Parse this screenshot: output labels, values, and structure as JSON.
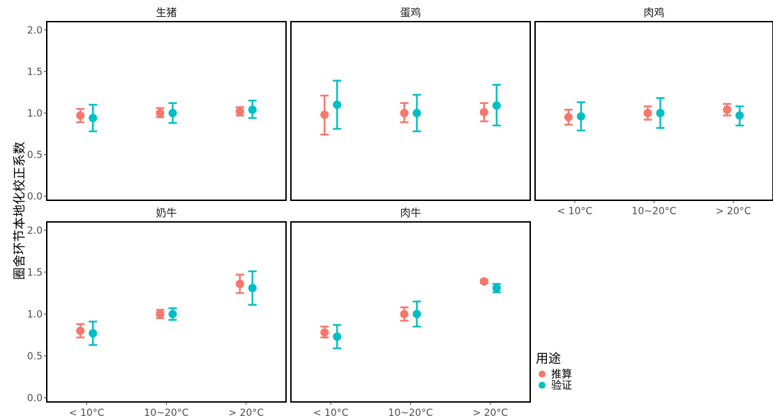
{
  "chart_data": {
    "type": "scatter",
    "subtype": "point-with-error-bars, faceted",
    "ylabel": "圈舍环节本地化校正系数",
    "ylim": [
      -0.05,
      2.1
    ],
    "yticks": [
      "0.0",
      "0.5",
      "1.0",
      "1.5",
      "2.0"
    ],
    "categories": [
      "< 10°C",
      "10~20°C",
      "> 20°C"
    ],
    "grid": false,
    "legend": {
      "title": "用途",
      "placement": "right-bottom",
      "items": [
        {
          "name": "推算",
          "color": "#F8766D"
        },
        {
          "name": "验证",
          "color": "#00BFC4"
        }
      ]
    },
    "facets": [
      {
        "title": "生猪",
        "series": [
          {
            "name": "推算",
            "values": [
              0.97,
              1.0,
              1.02
            ],
            "lower": [
              0.89,
              0.95,
              0.97
            ],
            "upper": [
              1.05,
              1.06,
              1.07
            ]
          },
          {
            "name": "验证",
            "values": [
              0.94,
              1.0,
              1.04
            ],
            "lower": [
              0.78,
              0.88,
              0.94
            ],
            "upper": [
              1.1,
              1.12,
              1.15
            ]
          }
        ]
      },
      {
        "title": "蛋鸡",
        "series": [
          {
            "name": "推算",
            "values": [
              0.98,
              1.0,
              1.01
            ],
            "lower": [
              0.74,
              0.89,
              0.9
            ],
            "upper": [
              1.21,
              1.12,
              1.12
            ]
          },
          {
            "name": "验证",
            "values": [
              1.1,
              1.0,
              1.09
            ],
            "lower": [
              0.81,
              0.78,
              0.85
            ],
            "upper": [
              1.39,
              1.22,
              1.34
            ]
          }
        ]
      },
      {
        "title": "肉鸡",
        "series": [
          {
            "name": "推算",
            "values": [
              0.95,
              1.0,
              1.04
            ],
            "lower": [
              0.86,
              0.92,
              0.97
            ],
            "upper": [
              1.04,
              1.08,
              1.11
            ]
          },
          {
            "name": "验证",
            "values": [
              0.96,
              1.0,
              0.97
            ],
            "lower": [
              0.79,
              0.82,
              0.85
            ],
            "upper": [
              1.13,
              1.18,
              1.08
            ]
          }
        ]
      },
      {
        "title": "奶牛",
        "series": [
          {
            "name": "推算",
            "values": [
              0.8,
              1.0,
              1.36
            ],
            "lower": [
              0.72,
              0.95,
              1.25
            ],
            "upper": [
              0.88,
              1.05,
              1.47
            ]
          },
          {
            "name": "验证",
            "values": [
              0.77,
              1.0,
              1.31
            ],
            "lower": [
              0.63,
              0.93,
              1.11
            ],
            "upper": [
              0.91,
              1.07,
              1.51
            ]
          }
        ]
      },
      {
        "title": "肉牛",
        "series": [
          {
            "name": "推算",
            "values": [
              0.78,
              1.0,
              1.39
            ],
            "lower": [
              0.72,
              0.92,
              1.37
            ],
            "upper": [
              0.85,
              1.08,
              1.41
            ]
          },
          {
            "name": "验证",
            "values": [
              0.73,
              1.0,
              1.31
            ],
            "lower": [
              0.59,
              0.85,
              1.26
            ],
            "upper": [
              0.87,
              1.15,
              1.36
            ]
          }
        ]
      }
    ]
  }
}
